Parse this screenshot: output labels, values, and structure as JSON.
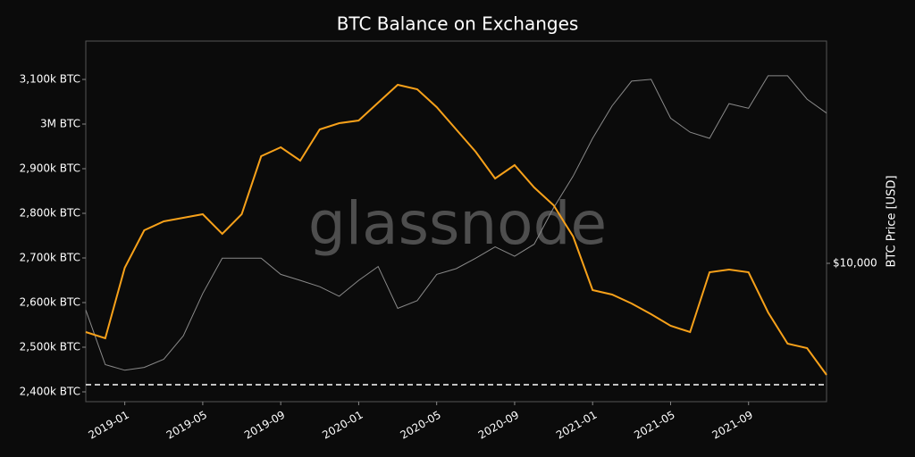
{
  "chart_data": {
    "type": "line",
    "title": "BTC Balance on Exchanges",
    "y2label": "BTC Price [USD]",
    "watermark": "glassnode",
    "x": [
      "2018-11",
      "2018-12",
      "2019-01",
      "2019-02",
      "2019-03",
      "2019-04",
      "2019-05",
      "2019-06",
      "2019-07",
      "2019-08",
      "2019-09",
      "2019-10",
      "2019-11",
      "2019-12",
      "2020-01",
      "2020-02",
      "2020-03",
      "2020-04",
      "2020-05",
      "2020-06",
      "2020-07",
      "2020-08",
      "2020-09",
      "2020-10",
      "2020-11",
      "2020-12",
      "2021-01",
      "2021-02",
      "2021-03",
      "2021-04",
      "2021-05",
      "2021-06",
      "2021-07",
      "2021-08",
      "2021-09",
      "2021-10",
      "2021-11",
      "2021-12",
      "2022-01"
    ],
    "xlim": [
      "2018-11",
      "2022-01"
    ],
    "xticks": [
      "2019-01",
      "2019-05",
      "2019-09",
      "2020-01",
      "2020-05",
      "2020-09",
      "2021-01",
      "2021-05",
      "2021-09"
    ],
    "ylim": [
      2378000,
      3186000
    ],
    "yticks": [
      {
        "value": 2400000,
        "label": "2,400k BTC"
      },
      {
        "value": 2500000,
        "label": "2,500k BTC"
      },
      {
        "value": 2600000,
        "label": "2,600k BTC"
      },
      {
        "value": 2700000,
        "label": "2,700k BTC"
      },
      {
        "value": 2800000,
        "label": "2,800k BTC"
      },
      {
        "value": 2900000,
        "label": "2,900k BTC"
      },
      {
        "value": 3000000,
        "label": "3M BTC"
      },
      {
        "value": 3100000,
        "label": "3,100k BTC"
      }
    ],
    "y2lim": [
      2667,
      83600
    ],
    "y2scale": "log",
    "y2ticks": [
      {
        "value": 10000,
        "label": "$10,000"
      }
    ],
    "reference_line": {
      "value": 2416000,
      "color": "#ffffff",
      "style": "dashed"
    },
    "series": [
      {
        "color": "#f7a11a",
        "values": [
          2534000,
          2520000,
          2678000,
          2762000,
          2782000,
          2790000,
          2798000,
          2754000,
          2798000,
          2928000,
          2948000,
          2918000,
          2988000,
          3002000,
          3008000,
          3048000,
          3088000,
          3078000,
          3038000,
          2988000,
          2938000,
          2878000,
          2908000,
          2858000,
          2818000,
          2748000,
          2628000,
          2618000,
          2598000,
          2574000,
          2548000,
          2534000,
          2668000,
          2674000,
          2668000,
          2578000,
          2508000,
          2498000,
          2438000
        ]
      },
      {
        "color": "#8a8a8a",
        "axis": "y2",
        "values": [
          6400,
          3800,
          3600,
          3700,
          4000,
          5000,
          7500,
          10500,
          10500,
          10500,
          9000,
          8500,
          8000,
          7300,
          8500,
          9700,
          6500,
          7000,
          9000,
          9500,
          10500,
          11700,
          10700,
          12000,
          17000,
          23000,
          33000,
          45000,
          57000,
          58000,
          40000,
          35000,
          33000,
          46000,
          44000,
          60000,
          60000,
          48000,
          42000
        ]
      }
    ]
  }
}
